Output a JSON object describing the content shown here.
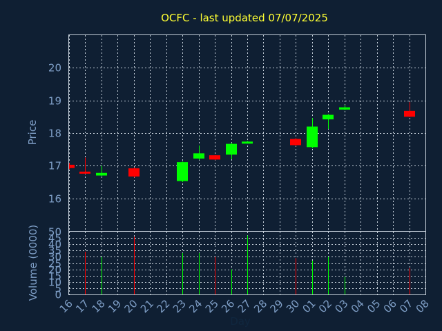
{
  "chart_data": [
    {
      "type": "candlestick",
      "title": "OCFC - last updated 07/07/2025",
      "xlabel": "",
      "ylabel": "Price",
      "ylim": [
        15,
        21
      ],
      "yticks": [
        16,
        17,
        18,
        19,
        20
      ],
      "grid": true,
      "up_color": "#00ff00",
      "down_color": "#ff0000",
      "days": [
        "16",
        "17",
        "18",
        "19",
        "20",
        "21",
        "22",
        "23",
        "24",
        "25",
        "26",
        "27",
        "28",
        "29",
        "30",
        "01",
        "02",
        "03",
        "04",
        "05",
        "06",
        "07",
        "08"
      ],
      "candles": [
        {
          "day": "16",
          "open": 17.03,
          "high": 17.08,
          "low": 16.9,
          "close": 16.93
        },
        {
          "day": "17",
          "open": 16.82,
          "high": 17.25,
          "low": 16.75,
          "close": 16.76
        },
        {
          "day": "18",
          "open": 16.7,
          "high": 17.0,
          "low": 16.68,
          "close": 16.78
        },
        {
          "day": "20",
          "open": 16.92,
          "high": 16.95,
          "low": 16.64,
          "close": 16.67
        },
        {
          "day": "23",
          "open": 16.53,
          "high": 17.13,
          "low": 16.5,
          "close": 17.11
        },
        {
          "day": "24",
          "open": 17.22,
          "high": 17.62,
          "low": 17.18,
          "close": 17.38
        },
        {
          "day": "25",
          "open": 17.32,
          "high": 17.33,
          "low": 17.17,
          "close": 17.19
        },
        {
          "day": "26",
          "open": 17.34,
          "high": 17.7,
          "low": 17.2,
          "close": 17.67
        },
        {
          "day": "27",
          "open": 17.7,
          "high": 17.76,
          "low": 17.68,
          "close": 17.74
        },
        {
          "day": "30",
          "open": 17.82,
          "high": 17.85,
          "low": 17.6,
          "close": 17.63
        },
        {
          "day": "01",
          "open": 17.57,
          "high": 18.46,
          "low": 17.54,
          "close": 18.2
        },
        {
          "day": "02",
          "open": 18.42,
          "high": 18.58,
          "low": 18.13,
          "close": 18.56
        },
        {
          "day": "03",
          "open": 18.72,
          "high": 18.86,
          "low": 18.7,
          "close": 18.79
        },
        {
          "day": "07",
          "open": 18.68,
          "high": 18.95,
          "low": 18.49,
          "close": 18.5
        }
      ]
    },
    {
      "type": "bar",
      "xlabel": "Day",
      "ylabel": "Volume (0000)",
      "ylim": [
        0,
        50
      ],
      "yticks": [
        0,
        5,
        10,
        15,
        20,
        25,
        30,
        35,
        40,
        45,
        50
      ],
      "grid": true,
      "volumes": [
        {
          "day": "17",
          "value": 34,
          "direction": "down"
        },
        {
          "day": "18",
          "value": 30,
          "direction": "up"
        },
        {
          "day": "20",
          "value": 46,
          "direction": "down"
        },
        {
          "day": "23",
          "value": 33,
          "direction": "up"
        },
        {
          "day": "24",
          "value": 33,
          "direction": "up"
        },
        {
          "day": "25",
          "value": 30,
          "direction": "down"
        },
        {
          "day": "26",
          "value": 20,
          "direction": "up"
        },
        {
          "day": "27",
          "value": 47,
          "direction": "up"
        },
        {
          "day": "30",
          "value": 29,
          "direction": "down"
        },
        {
          "day": "01",
          "value": 27,
          "direction": "up"
        },
        {
          "day": "02",
          "value": 30,
          "direction": "up"
        },
        {
          "day": "03",
          "value": 14,
          "direction": "up"
        },
        {
          "day": "07",
          "value": 21,
          "direction": "down"
        }
      ]
    }
  ]
}
